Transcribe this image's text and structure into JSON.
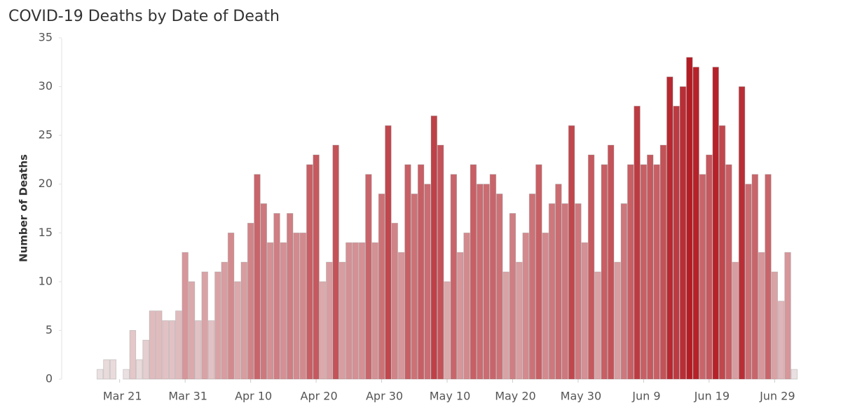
{
  "chart_data": {
    "type": "bar",
    "title": "COVID-19 Deaths by Date of Death",
    "y_label": "Number of Deaths",
    "categories": [
      null,
      null,
      null,
      "Mar 21",
      null,
      null,
      null,
      null,
      null,
      null,
      null,
      null,
      null,
      "Mar 31",
      null,
      null,
      null,
      null,
      null,
      null,
      null,
      null,
      null,
      "Apr 10",
      null,
      null,
      null,
      null,
      null,
      null,
      null,
      null,
      null,
      "Apr 20",
      null,
      null,
      null,
      null,
      null,
      null,
      null,
      null,
      null,
      "Apr 30",
      null,
      null,
      null,
      null,
      null,
      null,
      null,
      null,
      null,
      "May 10",
      null,
      null,
      null,
      null,
      null,
      null,
      null,
      null,
      null,
      "May 20",
      null,
      null,
      null,
      null,
      null,
      null,
      null,
      null,
      null,
      "May 30",
      null,
      null,
      null,
      null,
      null,
      null,
      null,
      null,
      null,
      "Jun 9",
      null,
      null,
      null,
      null,
      null,
      null,
      null,
      null,
      null,
      "Jun 19",
      null,
      null,
      null,
      null,
      null,
      null,
      null,
      null,
      null,
      "Jun 29",
      null,
      null,
      null
    ],
    "values": [
      1,
      2,
      2,
      0,
      1,
      5,
      2,
      4,
      7,
      7,
      6,
      6,
      7,
      13,
      10,
      6,
      11,
      6,
      11,
      12,
      15,
      10,
      12,
      16,
      21,
      18,
      14,
      17,
      14,
      17,
      15,
      15,
      22,
      23,
      10,
      12,
      24,
      12,
      14,
      14,
      14,
      21,
      14,
      19,
      26,
      16,
      13,
      22,
      19,
      22,
      20,
      27,
      24,
      10,
      21,
      13,
      15,
      22,
      20,
      20,
      21,
      19,
      11,
      17,
      12,
      15,
      19,
      22,
      15,
      18,
      20,
      18,
      26,
      18,
      14,
      23,
      11,
      22,
      24,
      12,
      18,
      22,
      28,
      22,
      23,
      22,
      24,
      31,
      28,
      30,
      33,
      32,
      21,
      23,
      32,
      26,
      22,
      12,
      30,
      20,
      21,
      13,
      21,
      11,
      8,
      13,
      1
    ],
    "color_low": "#ece6e7",
    "color_high": "#b41c24",
    "ylim": [
      0,
      35
    ],
    "yticks": [
      0,
      5,
      10,
      15,
      20,
      25,
      30,
      35
    ],
    "grid": false
  }
}
